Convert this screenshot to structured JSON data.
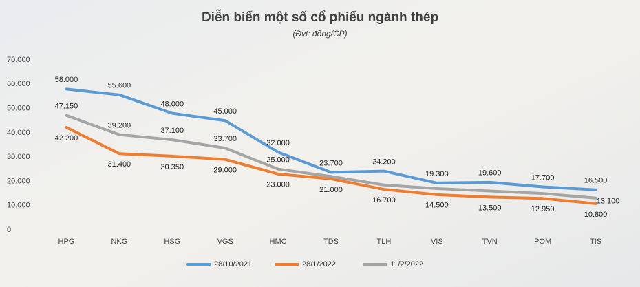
{
  "chart_data": {
    "type": "line",
    "title": "Diễn biến một số cổ phiếu ngành thép",
    "subtitle": "(Đvt: đồng/CP)",
    "categories": [
      "HPG",
      "NKG",
      "HSG",
      "VGS",
      "HMC",
      "TDS",
      "TLH",
      "VIS",
      "TVN",
      "POM",
      "TIS"
    ],
    "ylim": [
      0,
      70000
    ],
    "yticks": [
      0,
      {
        "value": 10000,
        "label": "10.000"
      },
      {
        "value": 20000,
        "label": "20.000"
      },
      {
        "value": 30000,
        "label": "30.000"
      },
      {
        "value": 40000,
        "label": "40.000"
      },
      {
        "value": 50000,
        "label": "50.000"
      },
      {
        "value": 60000,
        "label": "60.000"
      },
      {
        "value": 70000,
        "label": "70.000"
      }
    ],
    "legend": "bottom",
    "series": [
      {
        "name": "28/10/2021",
        "color": "#5b9bd5",
        "values": [
          58000,
          55600,
          48000,
          45000,
          32000,
          23700,
          24200,
          19300,
          19600,
          17700,
          16500
        ],
        "value_labels": [
          "58.000",
          "55.600",
          "48.000",
          "45.000",
          "32.000",
          "23.700",
          "24.200",
          "19.300",
          "19.600",
          "17.700",
          "16.500"
        ]
      },
      {
        "name": "28/1/2022",
        "color": "#ed7d31",
        "values": [
          42200,
          31400,
          30350,
          29000,
          23000,
          21000,
          16700,
          14500,
          13500,
          12950,
          10800
        ],
        "value_labels": [
          "42.200",
          "31.400",
          "30.350",
          "29.000",
          "23.000",
          "21.000",
          "16.700",
          "14.500",
          "13.500",
          "12.950",
          "10.800"
        ]
      },
      {
        "name": "11/2/2022",
        "color": "#a5a5a5",
        "values": [
          47150,
          39200,
          37100,
          33700,
          25000,
          22000,
          18500,
          17000,
          16000,
          15000,
          13100
        ],
        "value_labels": [
          "47.150",
          "39.200",
          "37.100",
          "33.700",
          "25.000",
          null,
          null,
          null,
          null,
          null,
          "13.100"
        ]
      }
    ]
  }
}
